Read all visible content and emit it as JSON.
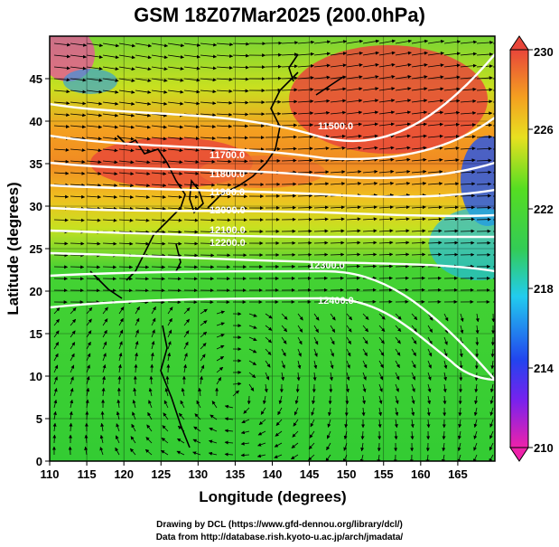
{
  "title": "GSM 18Z07Mar2025 (200.0hPa)",
  "x_axis": {
    "label": "Longitude (degrees)",
    "ticks": [
      "110",
      "115",
      "120",
      "125",
      "130",
      "135",
      "140",
      "145",
      "150",
      "155",
      "160",
      "165"
    ]
  },
  "y_axis": {
    "label": "Latitude  (degrees)",
    "ticks": [
      "0",
      "5",
      "10",
      "15",
      "20",
      "25",
      "30",
      "35",
      "40",
      "45"
    ]
  },
  "colorbar": {
    "ticks": [
      "210",
      "214",
      "218",
      "222",
      "226",
      "230"
    ],
    "min": 210,
    "max": 230
  },
  "contour_labels": [
    "11500.0",
    "11700.0",
    "11800.0",
    "11900.0",
    "12000.0",
    "12100.0",
    "12200.0",
    "12300.0",
    "12400.0"
  ],
  "credits": {
    "line1": "Drawing by DCL (https://www.gfd-dennou.org/library/dcl/)",
    "line2": "Data from http://database.rish.kyoto-u.ac.jp/arch/jmadata/"
  },
  "colors": {
    "warm": "#e8463a",
    "orange": "#f4a020",
    "yellow": "#e8e020",
    "green": "#33cc33",
    "cyan": "#22cccc",
    "blue": "#2266ee",
    "magenta": "#ee22aa"
  },
  "icons": {
    "wind_vectors": "arrow-icon",
    "coastline": "coastline-shape"
  }
}
